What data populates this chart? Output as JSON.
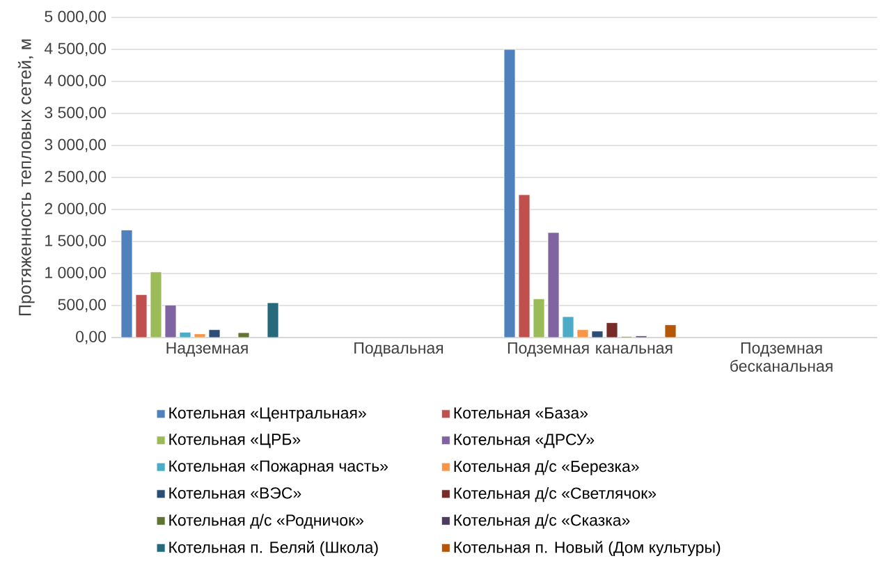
{
  "chart_data": {
    "type": "bar",
    "ylabel": "Протяженность тепловых сетей, м",
    "categories": [
      "Надземная",
      "Подвальная",
      "Подземная канальная",
      "Подземная бесканальная"
    ],
    "series": [
      {
        "name": "Котельная «Центральная»",
        "color": "#4f81bd",
        "values": [
          1680,
          null,
          4500,
          null
        ]
      },
      {
        "name": "Котельная «База»",
        "color": "#c0504d",
        "values": [
          670,
          null,
          2230,
          null
        ]
      },
      {
        "name": "Котельная «ЦРБ»",
        "color": "#9bbb59",
        "values": [
          1025,
          null,
          605,
          null
        ]
      },
      {
        "name": "Котельная «ДРСУ»",
        "color": "#8064a2",
        "values": [
          507,
          null,
          1640,
          null
        ]
      },
      {
        "name": "Котельная «Пожарная часть»",
        "color": "#4bacc6",
        "values": [
          83,
          null,
          326,
          null
        ]
      },
      {
        "name": "Котельная д/с «Березка»",
        "color": "#f79646",
        "values": [
          58,
          null,
          123,
          null
        ]
      },
      {
        "name": "Котельная «ВЭС»",
        "color": "#2c4d75",
        "values": [
          123,
          null,
          101,
          null
        ]
      },
      {
        "name": "Котельная д/с «Светлячок»",
        "color": "#772c2a",
        "values": [
          null,
          null,
          232,
          null
        ]
      },
      {
        "name": "Котельная д/с «Родничок»",
        "color": "#5f7530",
        "values": [
          76,
          null,
          15,
          null
        ]
      },
      {
        "name": "Котельная д/с «Сказка»",
        "color": "#4d3b62",
        "values": [
          null,
          null,
          25,
          null
        ]
      },
      {
        "name": "Котельная п. Беляй (Школа)",
        "color": "#276a7c",
        "values": [
          543,
          null,
          null,
          null
        ]
      },
      {
        "name": "Котельная п. Новый (Дом культуры)",
        "color": "#b65708",
        "values": [
          null,
          null,
          199,
          null
        ]
      }
    ],
    "ylim": [
      0,
      5000
    ],
    "yticks": [
      {
        "value": 0,
        "label": "0,00"
      },
      {
        "value": 500,
        "label": "500,00"
      },
      {
        "value": 1000,
        "label": "1 000,00"
      },
      {
        "value": 1500,
        "label": "1 500,00"
      },
      {
        "value": 2000,
        "label": "2 000,00"
      },
      {
        "value": 2500,
        "label": "2 500,00"
      },
      {
        "value": 3000,
        "label": "3 000,00"
      },
      {
        "value": 3500,
        "label": "3 500,00"
      },
      {
        "value": 4000,
        "label": "4 000,00"
      },
      {
        "value": 4500,
        "label": "4 500,00"
      },
      {
        "value": 5000,
        "label": "5 000,00"
      }
    ],
    "grid": "y",
    "legend": "bottom"
  }
}
